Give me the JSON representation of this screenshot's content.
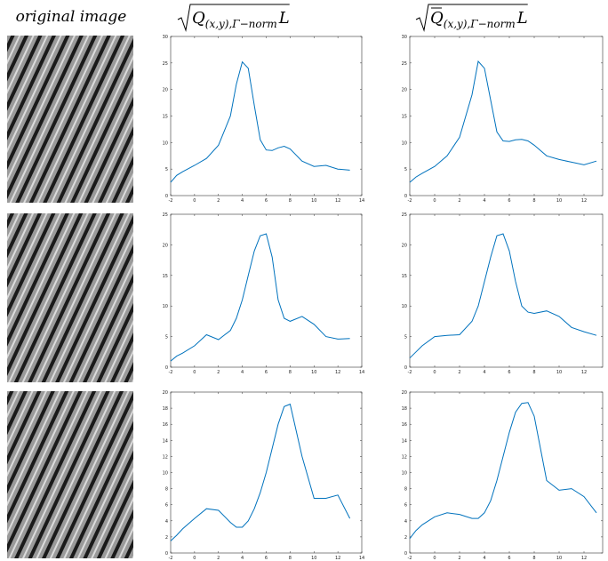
{
  "column_titles": [
    {
      "text": "original image"
    },
    {
      "symbol": "Q",
      "subscript": "(x,y),Γ−norm",
      "variable": "L",
      "overline": false
    },
    {
      "symbol": "Q",
      "subscript": "(x,y),Γ−norm",
      "variable": "L",
      "overline": true
    }
  ],
  "chart_data": [
    {
      "type": "line",
      "color": "#0072bd",
      "xlim": [
        -2,
        14
      ],
      "ylim": [
        0,
        30
      ],
      "xticks": [
        -2,
        0,
        2,
        4,
        6,
        8,
        10,
        12,
        14
      ],
      "yticks": [
        0,
        5,
        10,
        15,
        20,
        25,
        30
      ],
      "x": [
        -2,
        -1.5,
        -1,
        0,
        1,
        2,
        3,
        3.5,
        4,
        4.5,
        5,
        5.5,
        6,
        6.5,
        7,
        7.5,
        8,
        9,
        10,
        11,
        12,
        13
      ],
      "values": [
        2.5,
        3.8,
        4.5,
        5.7,
        7,
        9.5,
        15,
        21,
        25.2,
        24,
        17,
        10.5,
        8.6,
        8.5,
        9,
        9.3,
        8.8,
        6.5,
        5.5,
        5.7,
        5,
        4.8
      ]
    },
    {
      "type": "line",
      "color": "#0072bd",
      "xlim": [
        -2,
        13.5
      ],
      "ylim": [
        0,
        30
      ],
      "xticks": [
        -2,
        0,
        2,
        4,
        6,
        8,
        10,
        12
      ],
      "yticks": [
        0,
        5,
        10,
        15,
        20,
        25,
        30
      ],
      "x": [
        -2,
        -1.5,
        -1,
        0,
        1,
        2,
        3,
        3.5,
        4,
        4.5,
        5,
        5.5,
        6,
        6.5,
        7,
        7.5,
        8,
        9,
        10,
        11,
        12,
        13
      ],
      "values": [
        2.5,
        3.5,
        4.2,
        5.5,
        7.5,
        11,
        19,
        25.3,
        24,
        18,
        12,
        10.3,
        10.2,
        10.5,
        10.6,
        10.3,
        9.5,
        7.5,
        6.8,
        6.3,
        5.8,
        6.5
      ]
    },
    {
      "type": "line",
      "color": "#0072bd",
      "xlim": [
        -2,
        14
      ],
      "ylim": [
        0,
        25
      ],
      "xticks": [
        -2,
        0,
        2,
        4,
        6,
        8,
        10,
        12,
        14
      ],
      "yticks": [
        0,
        5,
        10,
        15,
        20,
        25
      ],
      "x": [
        -2,
        -1.5,
        -1,
        0,
        1,
        2,
        3,
        3.5,
        4,
        4.5,
        5,
        5.5,
        6,
        6.5,
        7,
        7.5,
        8,
        9,
        10,
        11,
        12,
        13
      ],
      "values": [
        1,
        1.8,
        2.3,
        3.5,
        5.3,
        4.5,
        6,
        8,
        11,
        15,
        19,
        21.5,
        21.8,
        18,
        11,
        8,
        7.5,
        8.3,
        7,
        5,
        4.6,
        4.7
      ]
    },
    {
      "type": "line",
      "color": "#0072bd",
      "xlim": [
        -2,
        13.5
      ],
      "ylim": [
        0,
        25
      ],
      "xticks": [
        -2,
        0,
        2,
        4,
        6,
        8,
        10,
        12
      ],
      "yticks": [
        0,
        5,
        10,
        15,
        20,
        25
      ],
      "x": [
        -2,
        -1.5,
        -1,
        0,
        1,
        2,
        3,
        3.5,
        4,
        4.5,
        5,
        5.5,
        6,
        6.5,
        7,
        7.5,
        8,
        9,
        10,
        11,
        12,
        13
      ],
      "values": [
        1.5,
        2.5,
        3.5,
        5,
        5.2,
        5.3,
        7.5,
        10,
        14,
        18,
        21.5,
        21.8,
        19,
        14,
        10,
        9,
        8.8,
        9.2,
        8.3,
        6.5,
        5.8,
        5.2
      ]
    },
    {
      "type": "line",
      "color": "#0072bd",
      "xlim": [
        -2,
        14
      ],
      "ylim": [
        0,
        20
      ],
      "xticks": [
        -2,
        0,
        2,
        4,
        6,
        8,
        10,
        12,
        14
      ],
      "yticks": [
        0,
        2,
        4,
        6,
        8,
        10,
        12,
        14,
        16,
        18,
        20
      ],
      "x": [
        -2,
        -1.5,
        -1,
        0,
        1,
        2,
        3,
        3.5,
        4,
        4.5,
        5,
        5.5,
        6,
        6.5,
        7,
        7.5,
        8,
        9,
        10,
        11,
        12,
        13
      ],
      "values": [
        1.5,
        2.2,
        3,
        4.3,
        5.5,
        5.3,
        3.8,
        3.2,
        3.2,
        4,
        5.5,
        7.5,
        10,
        13,
        16,
        18.2,
        18.5,
        12,
        6.8,
        6.8,
        7.2,
        4.3
      ]
    },
    {
      "type": "line",
      "color": "#0072bd",
      "xlim": [
        -2,
        13.5
      ],
      "ylim": [
        0,
        20
      ],
      "xticks": [
        -2,
        0,
        2,
        4,
        6,
        8,
        10,
        12
      ],
      "yticks": [
        0,
        2,
        4,
        6,
        8,
        10,
        12,
        14,
        16,
        18,
        20
      ],
      "x": [
        -2,
        -1.5,
        -1,
        0,
        1,
        2,
        3,
        3.5,
        4,
        4.5,
        5,
        5.5,
        6,
        6.5,
        7,
        7.5,
        8,
        9,
        10,
        11,
        12,
        13
      ],
      "values": [
        1.8,
        2.8,
        3.5,
        4.5,
        5,
        4.8,
        4.3,
        4.3,
        5,
        6.5,
        9,
        12,
        15,
        17.5,
        18.6,
        18.7,
        17,
        9,
        7.8,
        8,
        7,
        5
      ]
    }
  ]
}
